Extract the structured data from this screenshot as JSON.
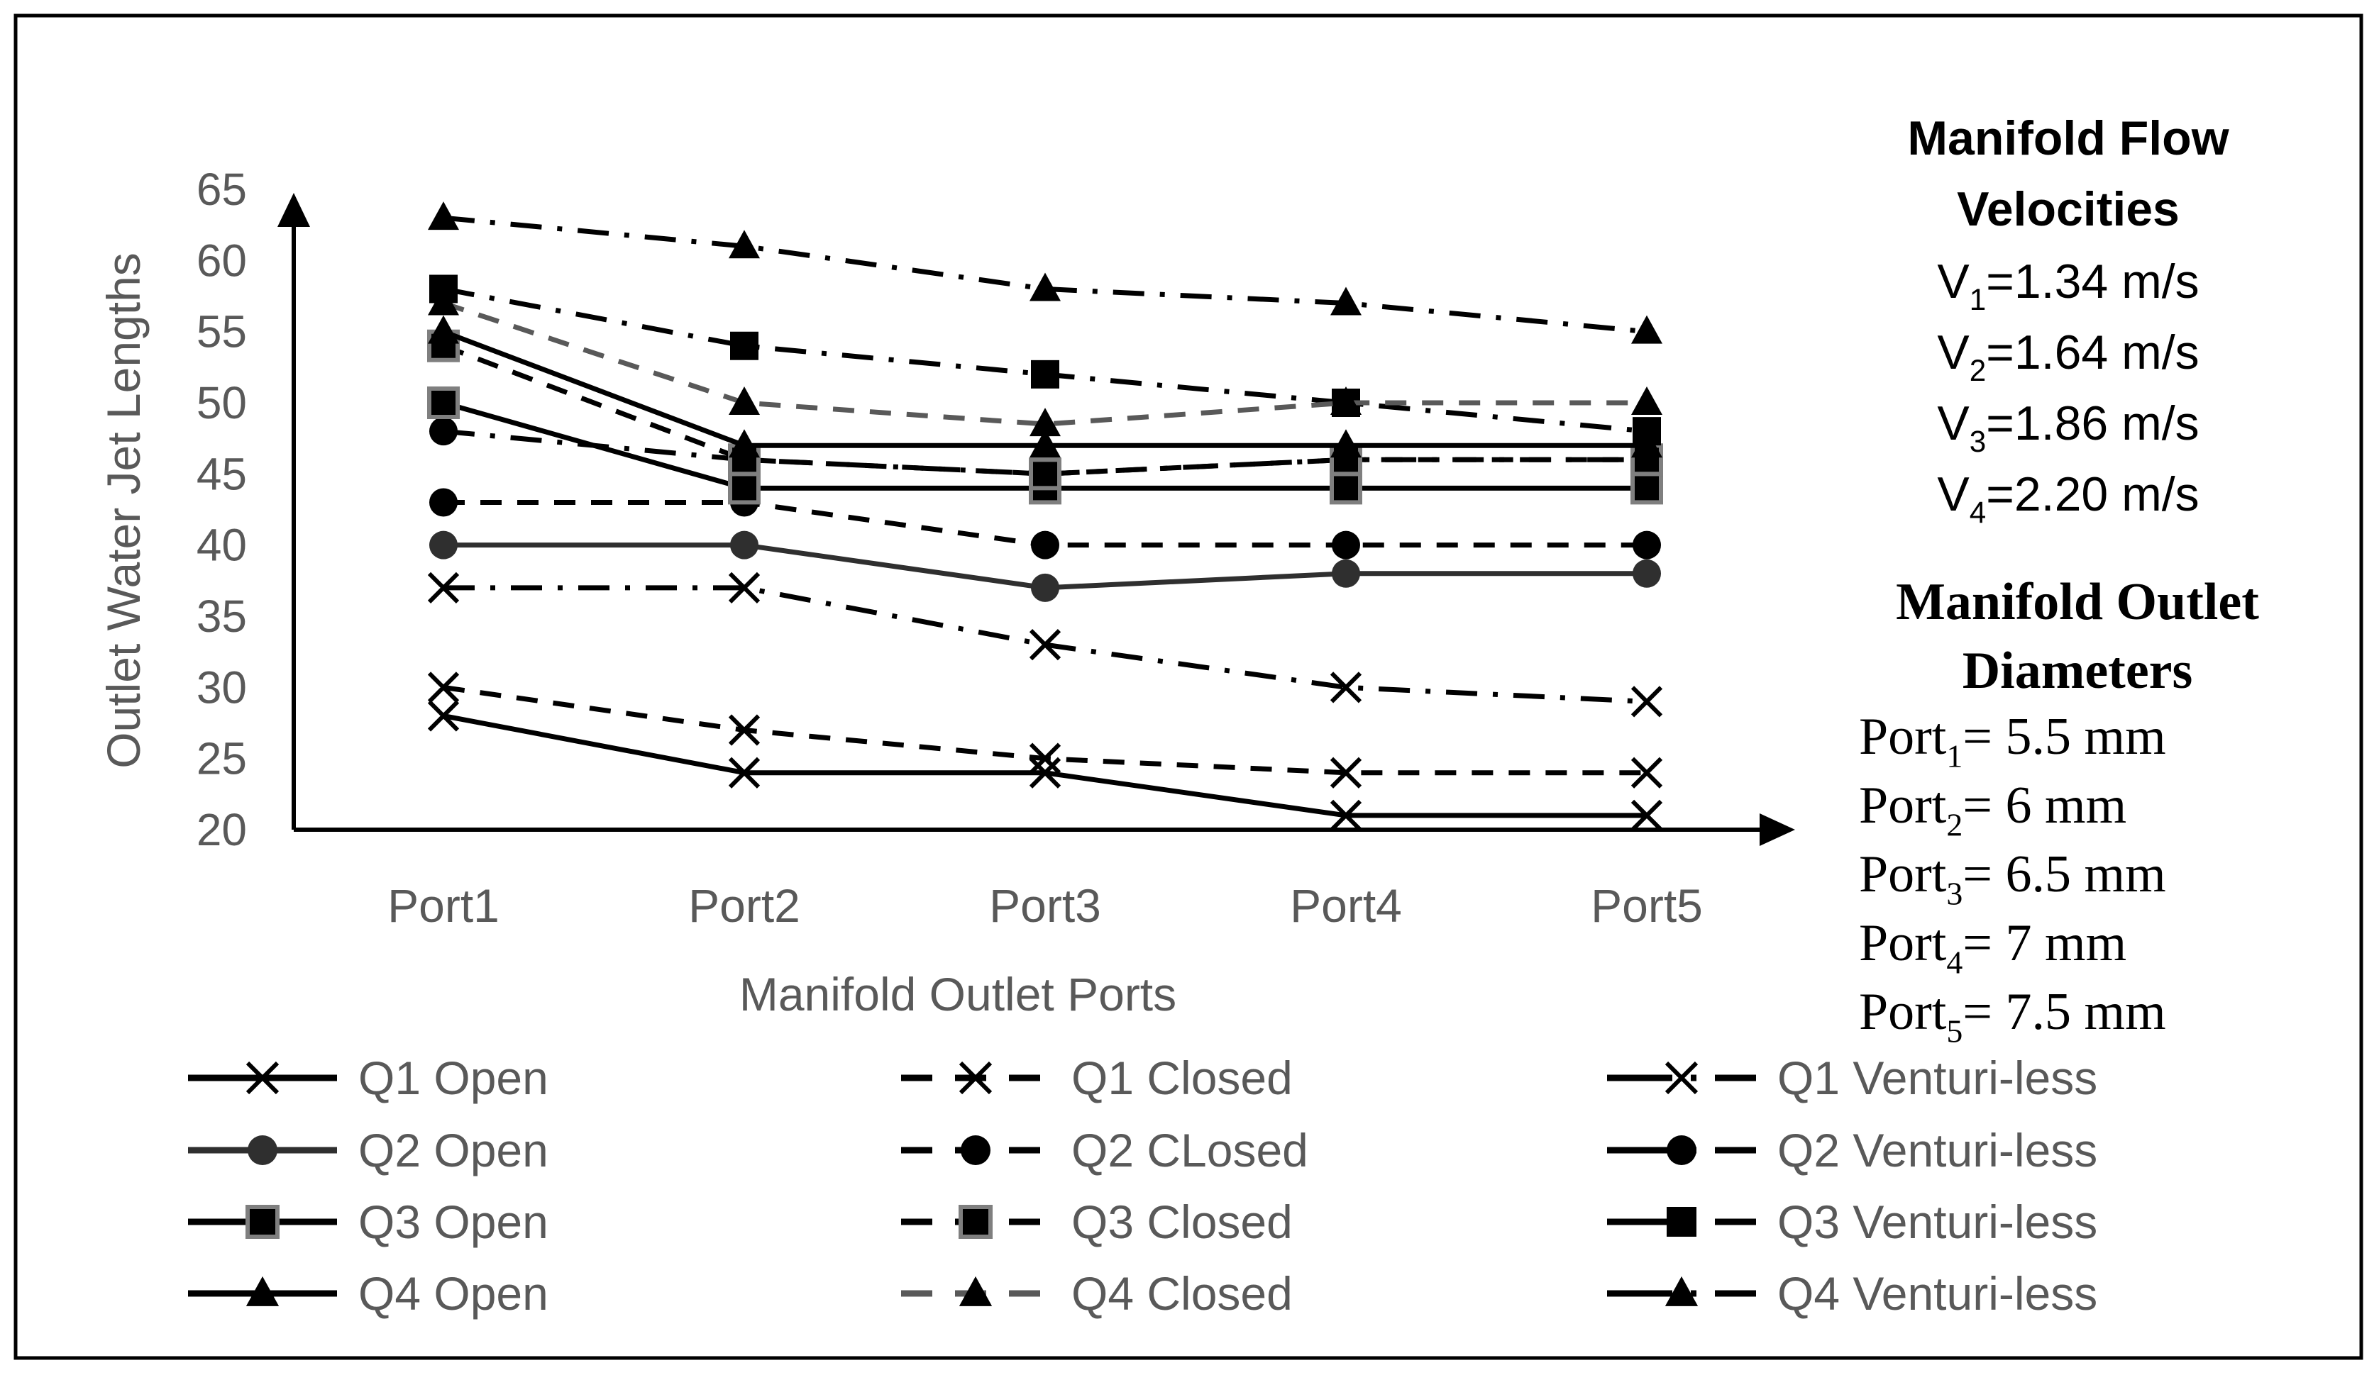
{
  "colors": {
    "black": "#000000",
    "dark": "#2f2f2f",
    "gray": "#595959",
    "text_gray": "#595959"
  },
  "chart_data": {
    "type": "line",
    "xlabel": "Manifold Outlet Ports",
    "ylabel": "Outlet Water Jet Lengths",
    "categories": [
      "Port1",
      "Port2",
      "Port3",
      "Port4",
      "Port5"
    ],
    "ylim": [
      20,
      65
    ],
    "yticks": [
      "65",
      "60",
      "55",
      "50",
      "45",
      "40",
      "35",
      "30",
      "25",
      "20"
    ],
    "grid": false,
    "series": [
      {
        "name": "Q1 Open",
        "values": [
          28,
          24,
          24,
          21,
          21
        ],
        "marker": "x",
        "dash": "solid",
        "color": "#000000"
      },
      {
        "name": "Q1 Closed",
        "values": [
          30,
          27,
          25,
          24,
          24
        ],
        "marker": "x",
        "dash": "dashed",
        "color": "#000000"
      },
      {
        "name": "Q1 Venturi-less",
        "values": [
          37,
          37,
          33,
          30,
          29
        ],
        "marker": "x",
        "dash": "dashdot",
        "color": "#000000"
      },
      {
        "name": "Q2 Open",
        "values": [
          40,
          40,
          37,
          38,
          38
        ],
        "marker": "circle",
        "dash": "solid",
        "color": "#2f2f2f"
      },
      {
        "name": "Q2 CLosed",
        "values": [
          43,
          43,
          40,
          40,
          40
        ],
        "marker": "circle",
        "dash": "dashed",
        "color": "#000000"
      },
      {
        "name": "Q2 Venturi-less",
        "values": [
          48,
          46,
          45,
          46,
          46
        ],
        "marker": "circle",
        "dash": "dashdot",
        "color": "#000000"
      },
      {
        "name": "Q3 Open",
        "values": [
          50,
          44,
          44,
          44,
          44
        ],
        "marker": "square-gray",
        "dash": "solid",
        "color": "#000000"
      },
      {
        "name": "Q3 Closed",
        "values": [
          54,
          46,
          45,
          46,
          46
        ],
        "marker": "square-gray",
        "dash": "dashed",
        "color": "#000000"
      },
      {
        "name": "Q3 Venturi-less",
        "values": [
          58,
          54,
          52,
          50,
          48
        ],
        "marker": "square",
        "dash": "dashdot",
        "color": "#000000"
      },
      {
        "name": "Q4 Open",
        "values": [
          55,
          47,
          47,
          47,
          47
        ],
        "marker": "triangle",
        "dash": "solid",
        "color": "#000000"
      },
      {
        "name": "Q4 Closed",
        "values": [
          57,
          50,
          48.5,
          50,
          50
        ],
        "marker": "triangle",
        "dash": "dashed",
        "color": "#595959"
      },
      {
        "name": "Q4 Venturi-less",
        "values": [
          63,
          61,
          58,
          57,
          55
        ],
        "marker": "triangle",
        "dash": "dashdot",
        "color": "#000000"
      }
    ],
    "legend_position": "bottom",
    "annotations": {
      "velocities_title_line1": "Manifold Flow",
      "velocities_title_line2": "Velocities",
      "velocities": [
        {
          "sym": "V",
          "sub": "1",
          "rest": "=1.34 m/s"
        },
        {
          "sym": "V",
          "sub": "2",
          "rest": "=1.64 m/s"
        },
        {
          "sym": "V",
          "sub": "3",
          "rest": "=1.86 m/s"
        },
        {
          "sym": "V",
          "sub": "4",
          "rest": "=2.20 m/s"
        }
      ],
      "diameters_title_line1": "Manifold Outlet",
      "diameters_title_line2": "Diameters",
      "diameters": [
        {
          "sym": "Port",
          "sub": "1",
          "rest": "= 5.5 mm"
        },
        {
          "sym": "Port",
          "sub": "2",
          "rest": "= 6 mm"
        },
        {
          "sym": "Port",
          "sub": "3",
          "rest": "= 6.5 mm"
        },
        {
          "sym": "Port",
          "sub": "4",
          "rest": "= 7 mm"
        },
        {
          "sym": "Port",
          "sub": "5",
          "rest": "= 7.5 mm"
        }
      ]
    }
  }
}
